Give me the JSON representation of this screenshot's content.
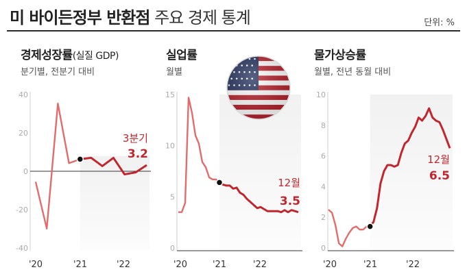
{
  "header": {
    "title_bold": "미 바이든정부 반환점",
    "title_light": "주요 경제 통계",
    "unit": "단위: %"
  },
  "colors": {
    "accent": "#c0262d",
    "pre_series": "#e26b6b",
    "baseline": "#333333"
  },
  "panels": [
    {
      "title": "경제성장률",
      "title_sub": "(실질 GDP)",
      "subtitle": "분기별, 전분기 대비"
    },
    {
      "title": "실업률",
      "title_sub": "",
      "subtitle": "월별"
    },
    {
      "title": "물가상승률",
      "title_sub": "",
      "subtitle": "월별, 전년 동월 대비"
    }
  ],
  "flag_icon": "us-flag-icon",
  "chart_data": [
    {
      "type": "line",
      "title": "경제성장률",
      "ylim": [
        -40,
        40
      ],
      "yticks": [
        "-40",
        "-20",
        "0",
        "20",
        "40"
      ],
      "xticks": [
        "'20",
        "'21",
        "'22"
      ],
      "x": [
        "2020Q1",
        "2020Q2",
        "2020Q3",
        "2020Q4",
        "2021Q1",
        "2021Q2",
        "2021Q3",
        "2021Q4",
        "2022Q1",
        "2022Q2",
        "2022Q3"
      ],
      "values": [
        -5.5,
        -29.9,
        35.3,
        4.2,
        6.3,
        7.0,
        2.7,
        7.0,
        -1.6,
        -0.6,
        3.2
      ],
      "highlight_start_index": 4,
      "annotation": {
        "label": "3분기",
        "value": "3.2"
      }
    },
    {
      "type": "line",
      "title": "실업률",
      "ylim": [
        0,
        15
      ],
      "yticks": [
        "0",
        "5",
        "10",
        "15"
      ],
      "xticks": [
        "'20",
        "'21",
        "'22"
      ],
      "x_start": "2020-01",
      "values": [
        3.5,
        3.5,
        4.4,
        14.7,
        13.2,
        11.0,
        10.2,
        8.4,
        7.9,
        6.9,
        6.7,
        6.7,
        6.4,
        6.2,
        6.1,
        6.1,
        5.8,
        5.9,
        5.4,
        5.2,
        4.8,
        4.5,
        4.2,
        3.9,
        4.0,
        3.8,
        3.6,
        3.6,
        3.6,
        3.6,
        3.5,
        3.7,
        3.5,
        3.7,
        3.6,
        3.5
      ],
      "highlight_start_index": 12,
      "annotation": {
        "label": "12월",
        "value": "3.5"
      }
    },
    {
      "type": "line",
      "title": "물가상승률",
      "ylim": [
        0,
        10
      ],
      "yticks": [
        "0",
        "2",
        "4",
        "6",
        "8",
        "10"
      ],
      "xticks": [
        "'20",
        "'21",
        "'22"
      ],
      "x_start": "2020-01",
      "values": [
        2.5,
        2.3,
        1.5,
        0.3,
        0.1,
        0.6,
        1.0,
        1.3,
        1.4,
        1.2,
        1.2,
        1.4,
        1.4,
        1.7,
        2.6,
        4.2,
        5.0,
        5.4,
        5.4,
        5.3,
        5.4,
        6.2,
        6.8,
        7.0,
        7.5,
        7.9,
        8.5,
        8.3,
        8.6,
        9.1,
        8.5,
        8.3,
        8.2,
        7.7,
        7.1,
        6.5
      ],
      "highlight_start_index": 12,
      "annotation": {
        "label": "12월",
        "value": "6.5"
      }
    }
  ]
}
